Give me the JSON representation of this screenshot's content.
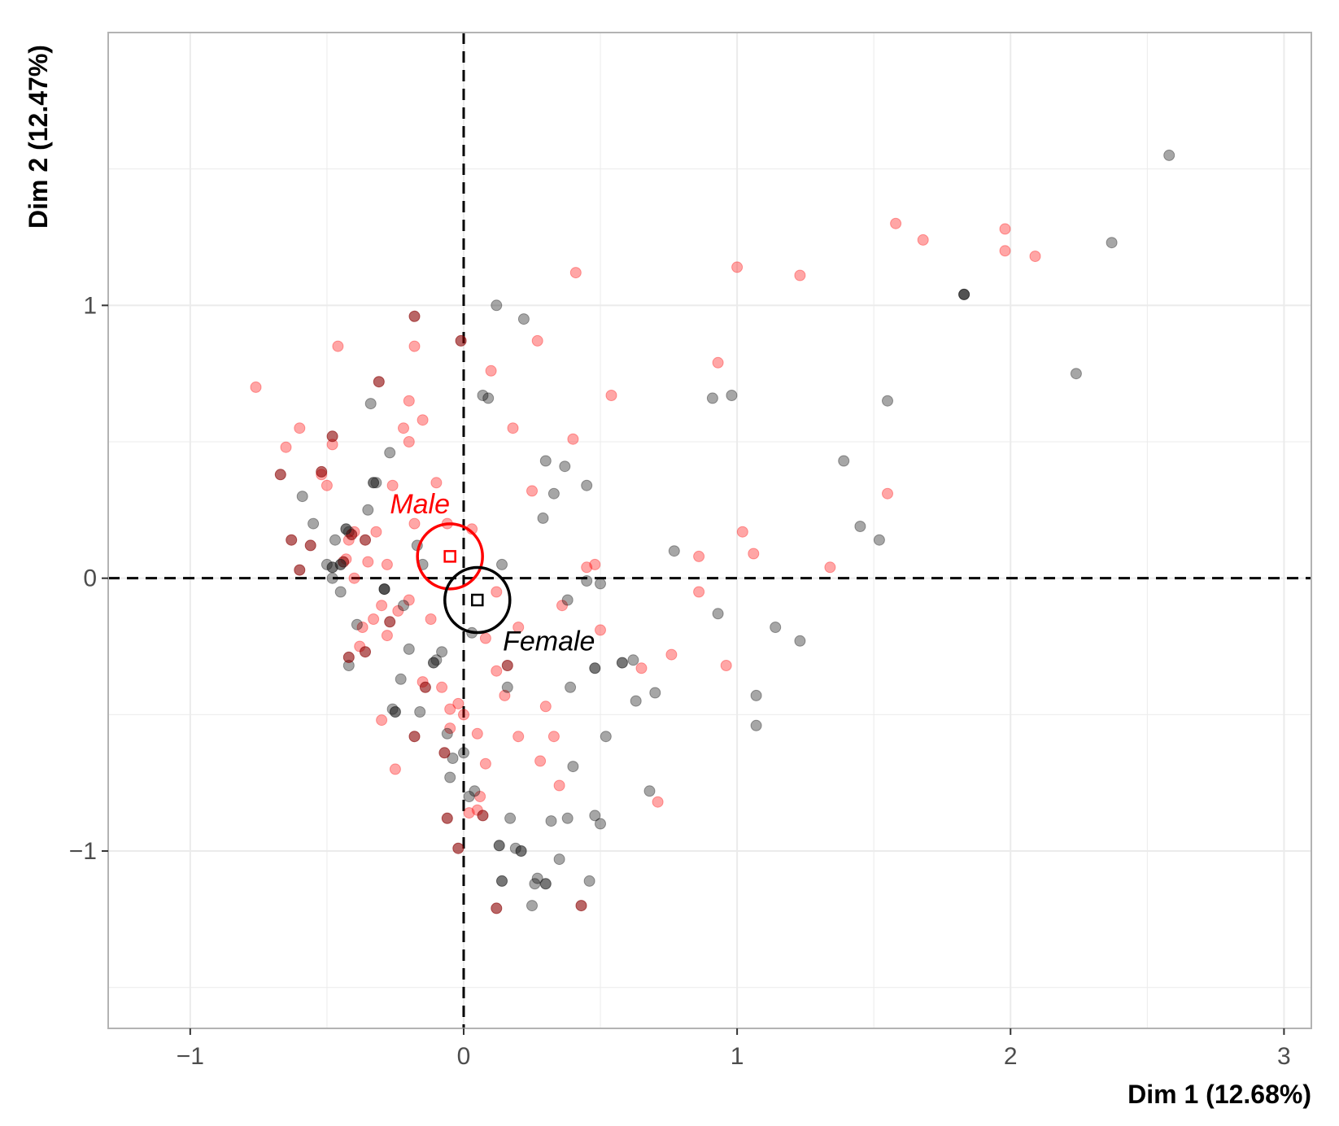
{
  "chart_data": {
    "type": "scatter",
    "xlabel": "Dim 1 (12.68%)",
    "ylabel": "Dim 2 (12.47%)",
    "xlim": [
      -1.3,
      3.1
    ],
    "ylim": [
      -1.65,
      2.0
    ],
    "x_ticks": [
      -1,
      0,
      1,
      2,
      3
    ],
    "x_tick_labels": [
      "−1",
      "0",
      "1",
      "2",
      "3"
    ],
    "y_ticks": [
      -1,
      0,
      1
    ],
    "y_tick_labels": [
      "−1",
      "0",
      "1"
    ],
    "grid": true,
    "reference_lines": {
      "x": 0,
      "y": 0,
      "style": "dashed"
    },
    "colors": {
      "Male": "#ff0000",
      "Female": "#000000",
      "grid": "#ebebeb",
      "panel_border": "#b3b3b3"
    },
    "groups": [
      {
        "name": "Male",
        "color": "#ff0000",
        "centroid": [
          -0.05,
          0.08
        ]
      },
      {
        "name": "Female",
        "color": "#000000",
        "centroid": [
          0.05,
          -0.08
        ]
      }
    ],
    "series": [
      {
        "color": "#ff0000",
        "points": [
          [
            -0.76,
            0.7
          ],
          [
            -0.65,
            0.48
          ],
          [
            -0.6,
            0.55
          ],
          [
            -0.52,
            0.38
          ],
          [
            -0.5,
            0.34
          ],
          [
            -0.48,
            0.49
          ],
          [
            -0.46,
            0.85
          ],
          [
            -0.43,
            0.07
          ],
          [
            -0.42,
            0.14
          ],
          [
            -0.4,
            0.17
          ],
          [
            -0.37,
            -0.18
          ],
          [
            -0.35,
            0.06
          ],
          [
            -0.32,
            0.17
          ],
          [
            -0.3,
            -0.1
          ],
          [
            -0.28,
            -0.21
          ],
          [
            -0.26,
            0.34
          ],
          [
            -0.24,
            -0.12
          ],
          [
            -0.22,
            0.55
          ],
          [
            -0.2,
            0.5
          ],
          [
            -0.2,
            0.65
          ],
          [
            -0.18,
            0.85
          ],
          [
            -0.15,
            0.58
          ],
          [
            -0.1,
            0.35
          ],
          [
            -0.08,
            -0.4
          ],
          [
            -0.06,
            0.2
          ],
          [
            -0.05,
            -0.48
          ],
          [
            -0.02,
            -0.46
          ],
          [
            0.0,
            -0.5
          ],
          [
            0.03,
            0.18
          ],
          [
            0.05,
            -0.85
          ],
          [
            0.06,
            -0.8
          ],
          [
            0.08,
            -0.68
          ],
          [
            0.1,
            0.76
          ],
          [
            0.12,
            -0.34
          ],
          [
            0.15,
            -0.43
          ],
          [
            0.18,
            0.55
          ],
          [
            0.2,
            -0.58
          ],
          [
            0.25,
            0.32
          ],
          [
            0.27,
            0.87
          ],
          [
            0.28,
            -0.67
          ],
          [
            0.3,
            -0.47
          ],
          [
            0.33,
            -0.58
          ],
          [
            0.35,
            -0.76
          ],
          [
            0.36,
            -0.1
          ],
          [
            0.4,
            0.51
          ],
          [
            0.41,
            1.12
          ],
          [
            0.45,
            0.04
          ],
          [
            0.48,
            0.05
          ],
          [
            0.5,
            -0.19
          ],
          [
            0.54,
            0.67
          ],
          [
            0.65,
            -0.33
          ],
          [
            0.71,
            -0.82
          ],
          [
            0.76,
            -0.28
          ],
          [
            0.86,
            0.08
          ],
          [
            0.86,
            -0.05
          ],
          [
            0.93,
            0.79
          ],
          [
            0.96,
            -0.32
          ],
          [
            1.0,
            1.14
          ],
          [
            1.02,
            0.17
          ],
          [
            1.06,
            0.09
          ],
          [
            1.23,
            1.11
          ],
          [
            1.34,
            0.04
          ],
          [
            1.55,
            0.31
          ],
          [
            1.58,
            1.3
          ],
          [
            1.68,
            1.24
          ],
          [
            1.98,
            1.2
          ],
          [
            1.98,
            1.28
          ],
          [
            2.09,
            1.18
          ],
          [
            -0.3,
            -0.52
          ],
          [
            -0.25,
            -0.7
          ],
          [
            -0.2,
            -0.08
          ],
          [
            -0.15,
            -0.38
          ],
          [
            -0.05,
            -0.55
          ],
          [
            0.02,
            -0.86
          ],
          [
            0.05,
            -0.57
          ],
          [
            0.12,
            -0.05
          ],
          [
            0.2,
            -0.18
          ],
          [
            -0.12,
            -0.15
          ],
          [
            -0.33,
            -0.15
          ],
          [
            -0.4,
            0.0
          ],
          [
            -0.18,
            0.2
          ],
          [
            -0.28,
            0.05
          ],
          [
            -0.38,
            -0.25
          ],
          [
            0.08,
            -0.22
          ]
        ]
      },
      {
        "color": "#000000",
        "points": [
          [
            -0.59,
            0.3
          ],
          [
            -0.55,
            0.2
          ],
          [
            -0.5,
            0.05
          ],
          [
            -0.48,
            0.0
          ],
          [
            -0.45,
            -0.05
          ],
          [
            -0.42,
            0.17
          ],
          [
            -0.39,
            -0.17
          ],
          [
            -0.35,
            0.25
          ],
          [
            -0.34,
            0.64
          ],
          [
            -0.32,
            0.35
          ],
          [
            -0.29,
            -0.04
          ],
          [
            -0.27,
            0.46
          ],
          [
            -0.26,
            -0.48
          ],
          [
            -0.23,
            -0.37
          ],
          [
            -0.2,
            -0.26
          ],
          [
            -0.16,
            -0.49
          ],
          [
            -0.15,
            0.05
          ],
          [
            -0.1,
            -0.3
          ],
          [
            -0.08,
            -0.27
          ],
          [
            -0.05,
            -0.73
          ],
          [
            -0.04,
            -0.66
          ],
          [
            0.0,
            -0.64
          ],
          [
            0.03,
            -0.2
          ],
          [
            0.04,
            -0.78
          ],
          [
            0.07,
            0.67
          ],
          [
            0.09,
            0.66
          ],
          [
            0.12,
            1.0
          ],
          [
            0.14,
            0.05
          ],
          [
            0.16,
            -0.4
          ],
          [
            0.17,
            -0.88
          ],
          [
            0.19,
            -0.99
          ],
          [
            0.22,
            0.95
          ],
          [
            0.25,
            -1.2
          ],
          [
            0.27,
            -1.1
          ],
          [
            0.3,
            0.43
          ],
          [
            0.32,
            -0.89
          ],
          [
            0.33,
            0.31
          ],
          [
            0.35,
            -1.03
          ],
          [
            0.37,
            0.41
          ],
          [
            0.38,
            -0.88
          ],
          [
            0.38,
            -0.08
          ],
          [
            0.39,
            -0.4
          ],
          [
            0.4,
            -0.69
          ],
          [
            0.45,
            0.34
          ],
          [
            0.46,
            -1.11
          ],
          [
            0.48,
            -0.87
          ],
          [
            0.5,
            -0.9
          ],
          [
            0.5,
            -0.02
          ],
          [
            0.52,
            -0.58
          ],
          [
            0.62,
            -0.3
          ],
          [
            0.63,
            -0.45
          ],
          [
            0.68,
            -0.78
          ],
          [
            0.7,
            -0.42
          ],
          [
            0.77,
            0.1
          ],
          [
            0.91,
            0.66
          ],
          [
            0.93,
            -0.13
          ],
          [
            0.98,
            0.67
          ],
          [
            1.07,
            -0.43
          ],
          [
            1.07,
            -0.54
          ],
          [
            1.14,
            -0.18
          ],
          [
            1.23,
            -0.23
          ],
          [
            1.39,
            0.43
          ],
          [
            1.45,
            0.19
          ],
          [
            1.52,
            0.14
          ],
          [
            1.55,
            0.65
          ],
          [
            1.83,
            1.04
          ],
          [
            2.24,
            0.75
          ],
          [
            2.37,
            1.23
          ],
          [
            2.58,
            1.55
          ],
          [
            -0.17,
            0.12
          ],
          [
            -0.42,
            -0.32
          ],
          [
            -0.06,
            -0.57
          ],
          [
            0.26,
            -1.12
          ],
          [
            -0.47,
            0.14
          ],
          [
            0.02,
            -0.8
          ],
          [
            0.45,
            -0.01
          ],
          [
            0.29,
            0.22
          ],
          [
            -0.22,
            -0.1
          ]
        ]
      },
      {
        "color": "#8b0000",
        "points": [
          [
            -0.67,
            0.38
          ],
          [
            -0.63,
            0.14
          ],
          [
            -0.6,
            0.03
          ],
          [
            -0.52,
            0.39
          ],
          [
            -0.48,
            0.52
          ],
          [
            -0.44,
            0.06
          ],
          [
            -0.42,
            -0.29
          ],
          [
            -0.41,
            0.16
          ],
          [
            -0.36,
            -0.27
          ],
          [
            -0.31,
            0.72
          ],
          [
            -0.27,
            -0.16
          ],
          [
            -0.18,
            0.96
          ],
          [
            -0.18,
            -0.58
          ],
          [
            -0.14,
            -0.4
          ],
          [
            -0.07,
            -0.64
          ],
          [
            -0.06,
            -0.88
          ],
          [
            -0.01,
            0.87
          ],
          [
            0.07,
            -0.87
          ],
          [
            0.43,
            -1.2
          ],
          [
            -0.02,
            -0.99
          ],
          [
            0.12,
            -1.21
          ],
          [
            0.16,
            -0.32
          ],
          [
            -0.56,
            0.12
          ],
          [
            -0.36,
            0.14
          ]
        ]
      },
      {
        "color": "#1a1a1a",
        "points": [
          [
            -0.48,
            0.04
          ],
          [
            -0.45,
            0.05
          ],
          [
            -0.33,
            0.35
          ],
          [
            -0.29,
            -0.04
          ],
          [
            -0.25,
            -0.49
          ],
          [
            -0.11,
            -0.31
          ],
          [
            0.13,
            -0.98
          ],
          [
            0.14,
            -1.11
          ],
          [
            0.21,
            -1.0
          ],
          [
            0.3,
            -1.12
          ],
          [
            0.48,
            -0.33
          ],
          [
            0.58,
            -0.31
          ],
          [
            1.83,
            1.04
          ],
          [
            -0.43,
            0.18
          ]
        ]
      }
    ]
  },
  "labels": {
    "male": "Male",
    "female": "Female"
  }
}
